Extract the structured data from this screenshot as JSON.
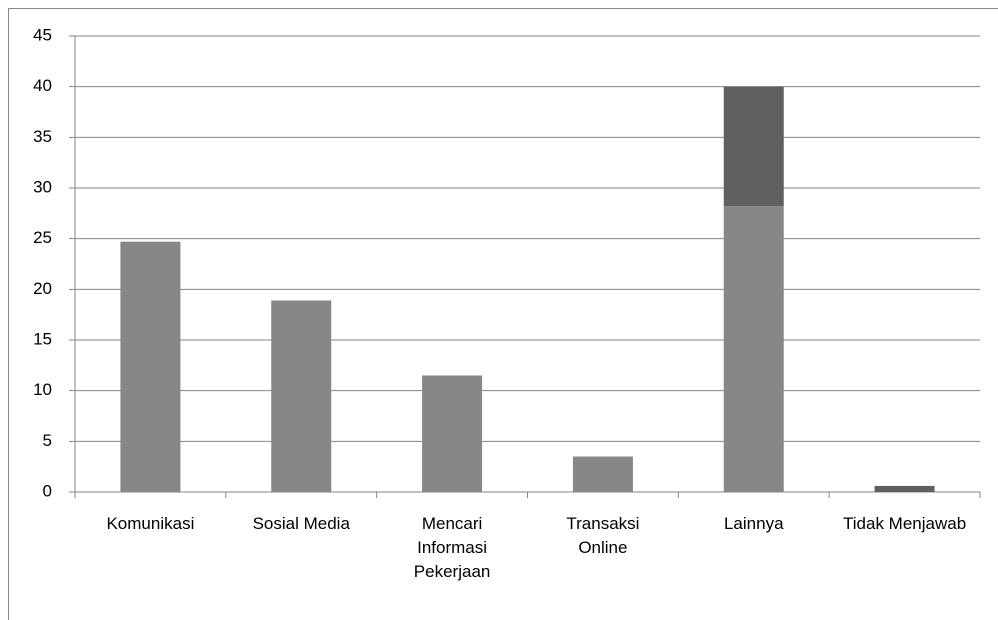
{
  "chart_data": {
    "type": "stacked_bar",
    "categories": [
      "Komunikasi",
      "Sosial Media",
      "Mencari Informasi Pekerjaan",
      "Transaksi Online",
      "Lainnya",
      "Tidak Menjawab"
    ],
    "series": [
      {
        "color": "#878787",
        "values": [
          24.7,
          18.9,
          11.5,
          3.5,
          28.2,
          null
        ]
      },
      {
        "color": "#606060",
        "values": [
          null,
          null,
          null,
          null,
          11.8,
          0.6
        ]
      }
    ],
    "ylim": [
      0,
      45
    ],
    "yticks": [
      0,
      5,
      10,
      15,
      20,
      25,
      30,
      35,
      40,
      45
    ],
    "grid": true
  }
}
